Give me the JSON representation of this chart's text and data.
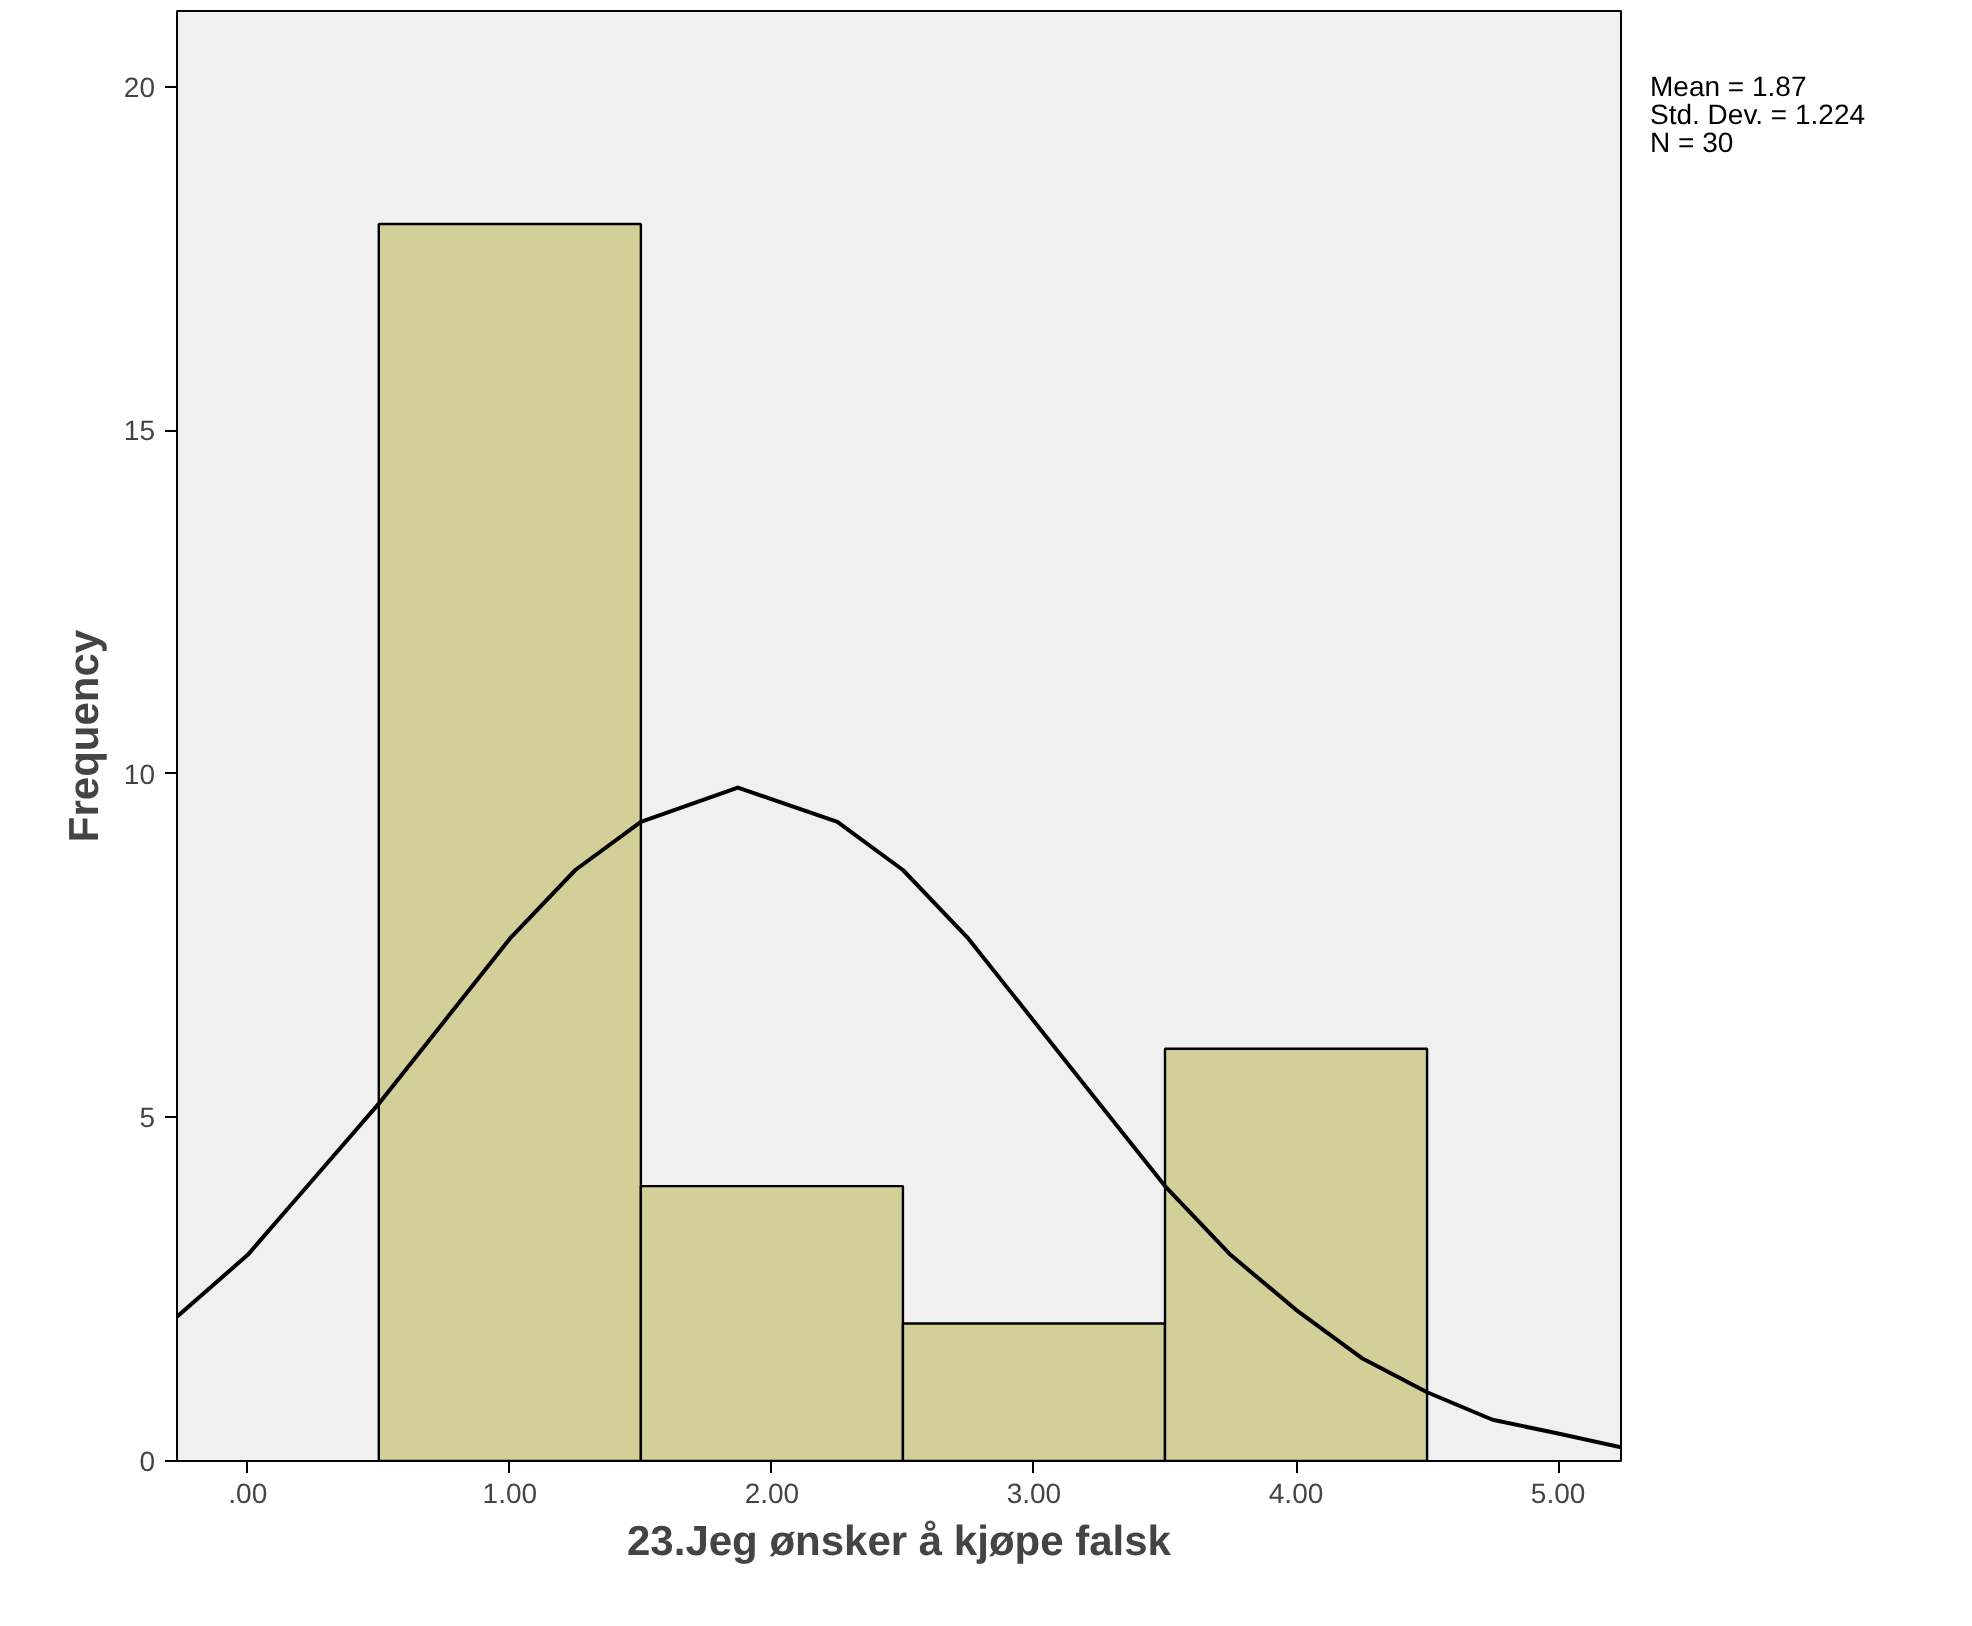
{
  "chart_data": {
    "type": "histogram",
    "xlabel": "23.Jeg ønsker å kjøpe falsk",
    "ylabel": "Frequency",
    "bins": [
      0.5,
      1.5,
      2.5,
      3.5,
      4.5
    ],
    "values": [
      18,
      4,
      2,
      6
    ],
    "color": "#d3cf99",
    "series": [
      {
        "type": "line",
        "color": "#000000",
        "x": [
          -0.27,
          0,
          0.25,
          0.5,
          0.75,
          1.0,
          1.25,
          1.5,
          1.87,
          2.25,
          2.5,
          2.75,
          3.0,
          3.25,
          3.5,
          3.75,
          4.0,
          4.25,
          4.5,
          4.75,
          5.0,
          5.24
        ],
        "values": [
          2.1,
          3.0,
          4.1,
          5.2,
          6.4,
          7.6,
          8.6,
          9.3,
          9.8,
          9.3,
          8.6,
          7.6,
          6.4,
          5.2,
          4.0,
          3.0,
          2.2,
          1.5,
          1.0,
          0.6,
          0.4,
          0.2
        ]
      }
    ],
    "xlim": [
      -0.27,
      5.24
    ],
    "ylim": [
      0,
      21.1
    ],
    "xticks": [
      {
        "value": 0,
        "label": ".00"
      },
      {
        "value": 1,
        "label": "1.00"
      },
      {
        "value": 2,
        "label": "2.00"
      },
      {
        "value": 3,
        "label": "3.00"
      },
      {
        "value": 4,
        "label": "4.00"
      },
      {
        "value": 5,
        "label": "5.00"
      }
    ],
    "yticks": [
      0,
      5,
      10,
      15,
      20
    ],
    "annotations": [
      "Mean = 1.87",
      "Std. Dev. = 1.224",
      "N = 30"
    ],
    "grid": false,
    "legend": false
  }
}
